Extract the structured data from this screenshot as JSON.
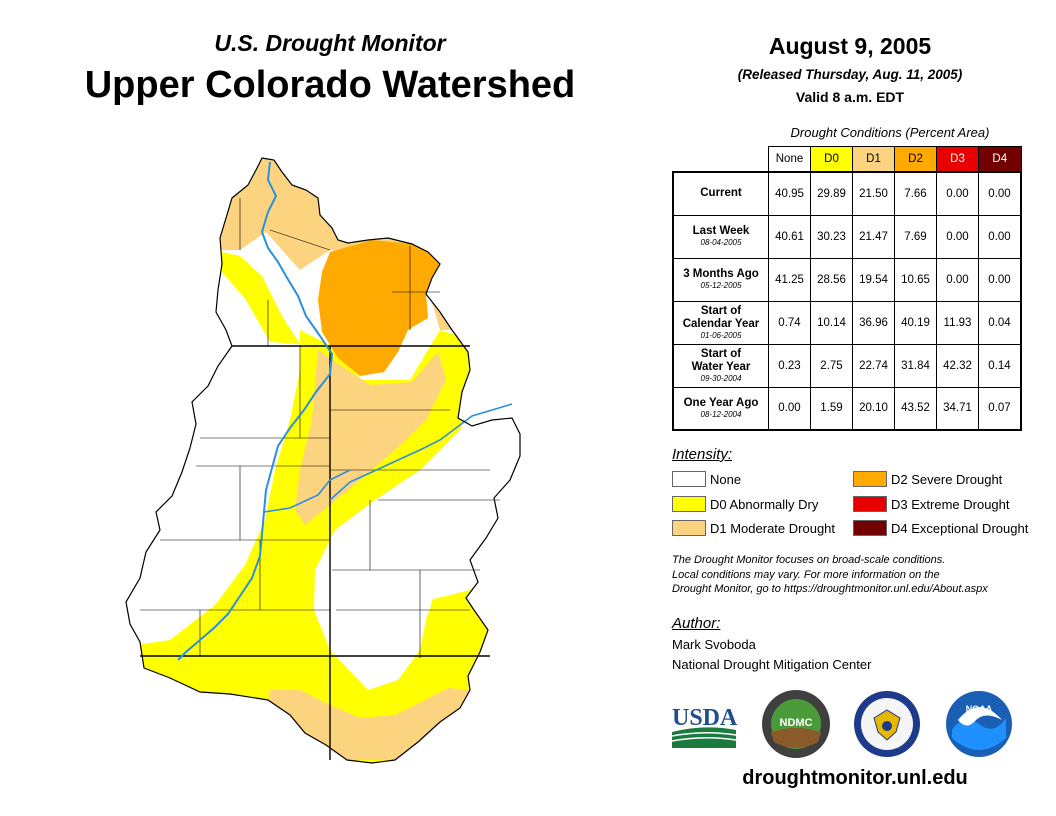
{
  "header": {
    "subtitle": "U.S. Drought Monitor",
    "title": "Upper Colorado Watershed",
    "date": "August 9, 2005",
    "released": "(Released Thursday, Aug. 11, 2005)",
    "valid": "Valid 8 a.m. EDT"
  },
  "table": {
    "caption": "Drought Conditions (Percent Area)",
    "columns": [
      "None",
      "D0",
      "D1",
      "D2",
      "D3",
      "D4"
    ],
    "column_colors": [
      "#ffffff",
      "#ffff00",
      "#fcd37f",
      "#ffaa00",
      "#e60000",
      "#730000"
    ],
    "column_text_colors": [
      "#000000",
      "#000000",
      "#000000",
      "#000000",
      "#ffffff",
      "#ffffff"
    ],
    "rows": [
      {
        "label": "Current",
        "label2": "",
        "date": "",
        "values": [
          "40.95",
          "29.89",
          "21.50",
          "7.66",
          "0.00",
          "0.00"
        ]
      },
      {
        "label": "Last Week",
        "label2": "",
        "date": "08-04-2005",
        "values": [
          "40.61",
          "30.23",
          "21.47",
          "7.69",
          "0.00",
          "0.00"
        ]
      },
      {
        "label": "3 Months Ago",
        "label2": "",
        "date": "05-12-2005",
        "values": [
          "41.25",
          "28.56",
          "19.54",
          "10.65",
          "0.00",
          "0.00"
        ]
      },
      {
        "label": "Start of",
        "label2": "Calendar Year",
        "date": "01-06-2005",
        "values": [
          "0.74",
          "10.14",
          "36.96",
          "40.19",
          "11.93",
          "0.04"
        ]
      },
      {
        "label": "Start of",
        "label2": "Water Year",
        "date": "09-30-2004",
        "values": [
          "0.23",
          "2.75",
          "22.74",
          "31.84",
          "42.32",
          "0.14"
        ]
      },
      {
        "label": "One Year Ago",
        "label2": "",
        "date": "08-12-2004",
        "values": [
          "0.00",
          "1.59",
          "20.10",
          "43.52",
          "34.71",
          "0.07"
        ]
      }
    ]
  },
  "legend": {
    "title": "Intensity:",
    "items": [
      {
        "label": "None",
        "color": "#ffffff"
      },
      {
        "label": "D0 Abnormally Dry",
        "color": "#ffff00"
      },
      {
        "label": "D1 Moderate Drought",
        "color": "#fcd37f"
      },
      {
        "label": "D2 Severe Drought",
        "color": "#ffaa00"
      },
      {
        "label": "D3 Extreme Drought",
        "color": "#e60000"
      },
      {
        "label": "D4 Exceptional Drought",
        "color": "#730000"
      }
    ]
  },
  "note": {
    "line1": "The Drought Monitor focuses on broad-scale conditions.",
    "line2": "Local conditions may vary. For more information on the",
    "line3": "Drought Monitor, go to https://droughtmonitor.unl.edu/About.aspx"
  },
  "author": {
    "label": "Author:",
    "name": "Mark Svoboda",
    "org": "National Drought Mitigation Center"
  },
  "logos": {
    "usda": "USDA",
    "ndmc": "NDMC",
    "noaa": "NOAA"
  },
  "website": "droughtmonitor.unl.edu",
  "map_colors": {
    "none": "#ffffff",
    "d0": "#ffff00",
    "d1": "#fcd37f",
    "d2": "#ffaa00",
    "river": "#2a8fdf",
    "border": "#000000"
  }
}
